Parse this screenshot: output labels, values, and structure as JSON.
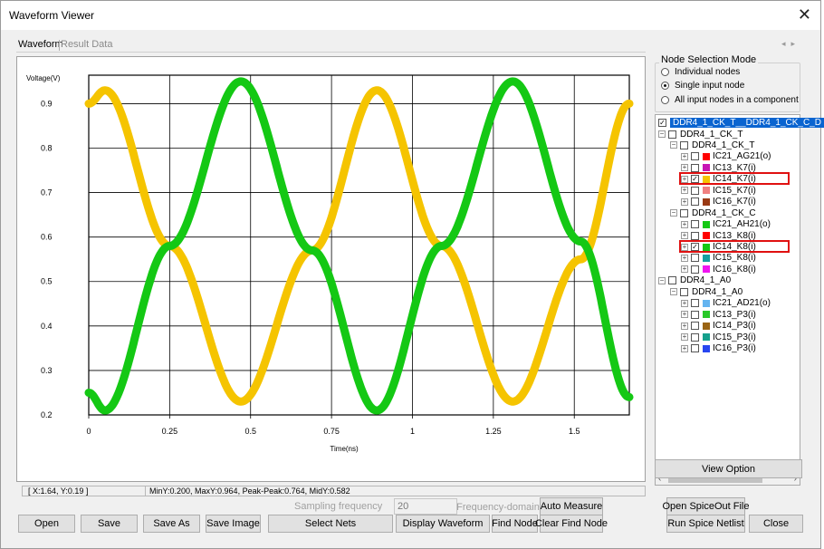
{
  "window": {
    "title": "Waveform Viewer",
    "close_glyph": "✕"
  },
  "tabs": [
    {
      "label": "Waveform"
    },
    {
      "label": "Result Data"
    }
  ],
  "status": {
    "cursor": "[ X:1.64, Y:0.19 ]",
    "stats": "MinY:0.200, MaxY:0.964, Peak-Peak:0.764, MidY:0.582"
  },
  "chart_data": {
    "type": "line",
    "ylabel": "Voltage(V)",
    "xlabel": "Time(ns)",
    "xlim": [
      0,
      1.67
    ],
    "ylim": [
      0.2,
      0.964
    ],
    "x_ticks": [
      "0",
      "0.25",
      "0.5",
      "0.75",
      "1",
      "1.25",
      "1.5"
    ],
    "y_ticks": [
      "0.9",
      "0.8",
      "0.7",
      "0.6",
      "0.5",
      "0.4",
      "0.3",
      "0.2"
    ],
    "grid": true,
    "series": [
      {
        "name": "IC14_K7(i)",
        "color": "#f5c400",
        "x": [
          0,
          0.05,
          0.25,
          0.47,
          0.69,
          0.89,
          1.09,
          1.31,
          1.52,
          1.67
        ],
        "y": [
          0.9,
          0.93,
          0.58,
          0.23,
          0.57,
          0.93,
          0.58,
          0.23,
          0.55,
          0.9
        ]
      },
      {
        "name": "IC14_K8(i)",
        "color": "#14c814",
        "x": [
          0,
          0.05,
          0.25,
          0.47,
          0.69,
          0.89,
          1.09,
          1.31,
          1.52,
          1.67
        ],
        "y": [
          0.25,
          0.21,
          0.58,
          0.95,
          0.57,
          0.21,
          0.58,
          0.95,
          0.59,
          0.24
        ]
      }
    ]
  },
  "node_mode": {
    "legend": "Node Selection Mode",
    "options": [
      {
        "label": "Individual nodes",
        "selected": false
      },
      {
        "label": "Single input node",
        "selected": true
      },
      {
        "label": "All input nodes in a component",
        "selected": false
      }
    ]
  },
  "tree": {
    "root_label": "DDR4_1_CK_T__DDR4_1_CK_C_D",
    "nodes": [
      {
        "label": "DDR4_1_CK_T",
        "level": 1,
        "exp": "⊟",
        "checked": false
      },
      {
        "label": "DDR4_1_CK_T",
        "level": 2,
        "exp": "⊟",
        "checked": false
      },
      {
        "label": "IC21_AG21(o)",
        "level": 3,
        "exp": "+",
        "checked": false,
        "color": "#ff0000"
      },
      {
        "label": "IC13_K7(i)",
        "level": 3,
        "exp": "+",
        "checked": false,
        "color": "#c814b4"
      },
      {
        "label": "IC14_K7(i)",
        "level": 3,
        "exp": "+",
        "checked": true,
        "color": "#f5c400",
        "highlight": true
      },
      {
        "label": "IC15_K7(i)",
        "level": 3,
        "exp": "+",
        "checked": false,
        "color": "#f08080"
      },
      {
        "label": "IC16_K7(i)",
        "level": 3,
        "exp": "+",
        "checked": false,
        "color": "#9a3a14"
      },
      {
        "label": "DDR4_1_CK_C",
        "level": 2,
        "exp": "⊟",
        "checked": false
      },
      {
        "label": "IC21_AH21(o)",
        "level": 3,
        "exp": "+",
        "checked": false,
        "color": "#14c814"
      },
      {
        "label": "IC13_K8(i)",
        "level": 3,
        "exp": "+",
        "checked": false,
        "color": "#ff0000"
      },
      {
        "label": "IC14_K8(i)",
        "level": 3,
        "exp": "+",
        "checked": true,
        "color": "#14c814",
        "highlight": true
      },
      {
        "label": "IC15_K8(i)",
        "level": 3,
        "exp": "+",
        "checked": false,
        "color": "#14a0a0"
      },
      {
        "label": "IC16_K8(i)",
        "level": 3,
        "exp": "+",
        "checked": false,
        "color": "#f014f0"
      },
      {
        "label": "DDR4_1_A0",
        "level": 1,
        "exp": "⊟",
        "checked": false
      },
      {
        "label": "DDR4_1_A0",
        "level": 2,
        "exp": "⊟",
        "checked": false
      },
      {
        "label": "IC21_AD21(o)",
        "level": 3,
        "exp": "+",
        "checked": false,
        "color": "#64b4f0"
      },
      {
        "label": "IC13_P3(i)",
        "level": 3,
        "exp": "+",
        "checked": false,
        "color": "#28c828"
      },
      {
        "label": "IC14_P3(i)",
        "level": 3,
        "exp": "+",
        "checked": false,
        "color": "#9a6414"
      },
      {
        "label": "IC15_P3(i)",
        "level": 3,
        "exp": "+",
        "checked": false,
        "color": "#14a08c"
      },
      {
        "label": "IC16_P3(i)",
        "level": 3,
        "exp": "+",
        "checked": false,
        "color": "#2846f0"
      }
    ]
  },
  "buttons": {
    "view_option": "View Option",
    "sampling_label": "Sampling frequency",
    "sampling_value": "20",
    "frequency_domain": "Frequency-domain",
    "auto_measure": "Auto Measure",
    "open_spiceout": "Open SpiceOut File",
    "open": "Open",
    "save": "Save",
    "save_as": "Save As",
    "save_image": "Save Image",
    "select_nets": "Select Nets",
    "display_waveform": "Display Waveform",
    "find_node": "Find Node",
    "clear_find_node": "Clear Find Node",
    "run_spice": "Run Spice Netlist",
    "close": "Close"
  }
}
